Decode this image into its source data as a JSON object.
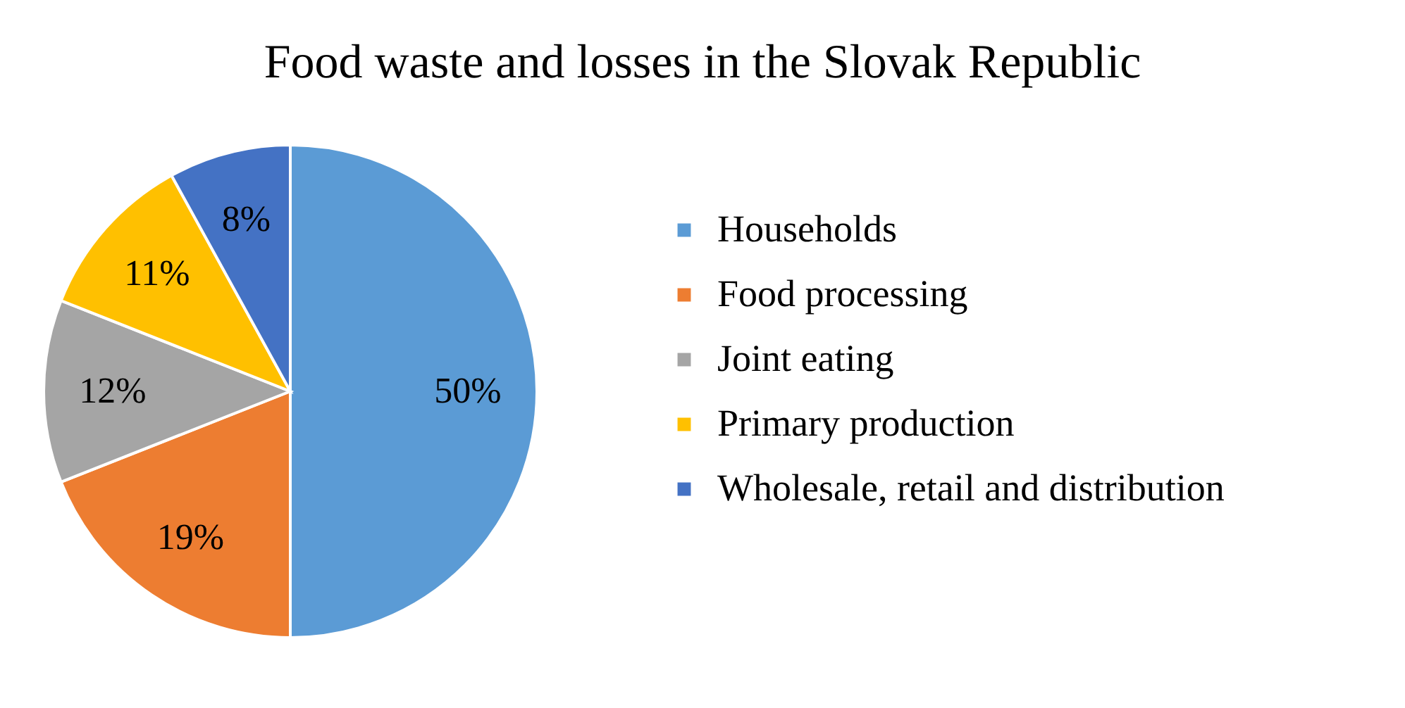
{
  "chart_data": {
    "type": "pie",
    "title": "Food waste and losses in the Slovak Republic",
    "categories": [
      "Households",
      "Food processing",
      "Joint eating",
      "Primary production",
      "Wholesale, retail and distribution"
    ],
    "values": [
      50,
      19,
      12,
      11,
      8
    ],
    "colors": [
      "#5b9bd5",
      "#ed7d31",
      "#a5a5a5",
      "#ffc000",
      "#4472c4"
    ],
    "value_labels": [
      "50%",
      "19%",
      "12%",
      "11%",
      "8%"
    ],
    "legend": "right"
  }
}
